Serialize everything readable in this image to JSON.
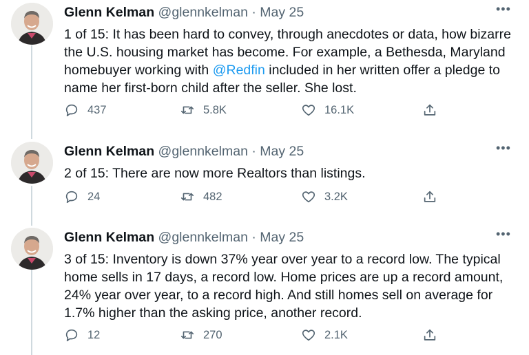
{
  "tweets": [
    {
      "name": "Glenn Kelman",
      "handle": "@glennkelman",
      "separator": "·",
      "date": "May 25",
      "more": "•••",
      "text_before": "1 of 15: It has been hard to convey, through anecdotes or data, how bizarre the U.S. housing market has become. For example, a Bethesda, Maryland homebuyer working with ",
      "mention": "@Redfin",
      "text_after": " included in her written offer a pledge to name her first-born child after the seller. She lost.",
      "replies": "437",
      "retweets": "5.8K",
      "likes": "16.1K"
    },
    {
      "name": "Glenn Kelman",
      "handle": "@glennkelman",
      "separator": "·",
      "date": "May 25",
      "more": "•••",
      "text_before": "2 of 15: There are now more Realtors than listings.",
      "mention": "",
      "text_after": "",
      "replies": "24",
      "retweets": "482",
      "likes": "3.2K"
    },
    {
      "name": "Glenn Kelman",
      "handle": "@glennkelman",
      "separator": "·",
      "date": "May 25",
      "more": "•••",
      "text_before": "3 of 15: Inventory is down 37% year over year to a record low. The typical home sells in 17 days, a record low. Home prices are up a record amount, 24% year over year, to a record high. And still homes sell on average for 1.7% higher than the asking price, another record.",
      "mention": "",
      "text_after": "",
      "replies": "12",
      "retweets": "270",
      "likes": "2.1K"
    }
  ],
  "colors": {
    "text": "#0f1419",
    "secondary": "#536471",
    "link": "#1d9bf0",
    "thread_line": "#cfd9de"
  },
  "icons": [
    "reply-icon",
    "retweet-icon",
    "like-icon",
    "share-icon",
    "more-icon"
  ]
}
